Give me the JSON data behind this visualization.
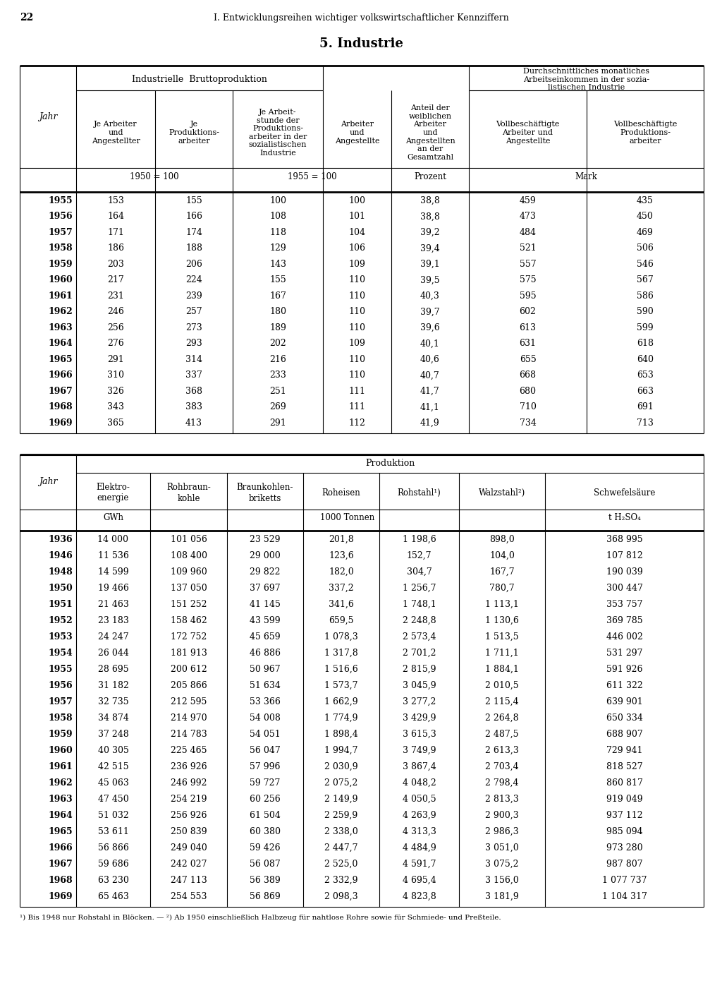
{
  "page_number": "22",
  "header_text": "I. Entwicklungsreihen wichtiger volkswirtschaftlicher Kennziffern",
  "section_title": "5. Industrie",
  "table1_data": [
    [
      "1955",
      "153",
      "155",
      "100",
      "100",
      "38,8",
      "459",
      "435"
    ],
    [
      "1956",
      "164",
      "166",
      "108",
      "101",
      "38,8",
      "473",
      "450"
    ],
    [
      "1957",
      "171",
      "174",
      "118",
      "104",
      "39,2",
      "484",
      "469"
    ],
    [
      "1958",
      "186",
      "188",
      "129",
      "106",
      "39,4",
      "521",
      "506"
    ],
    [
      "1959",
      "203",
      "206",
      "143",
      "109",
      "39,1",
      "557",
      "546"
    ],
    [
      "1960",
      "217",
      "224",
      "155",
      "110",
      "39,5",
      "575",
      "567"
    ],
    [
      "1961",
      "231",
      "239",
      "167",
      "110",
      "40,3",
      "595",
      "586"
    ],
    [
      "1962",
      "246",
      "257",
      "180",
      "110",
      "39,7",
      "602",
      "590"
    ],
    [
      "1963",
      "256",
      "273",
      "189",
      "110",
      "39,6",
      "613",
      "599"
    ],
    [
      "1964",
      "276",
      "293",
      "202",
      "109",
      "40,1",
      "631",
      "618"
    ],
    [
      "1965",
      "291",
      "314",
      "216",
      "110",
      "40,6",
      "655",
      "640"
    ],
    [
      "1966",
      "310",
      "337",
      "233",
      "110",
      "40,7",
      "668",
      "653"
    ],
    [
      "1967",
      "326",
      "368",
      "251",
      "111",
      "41,7",
      "680",
      "663"
    ],
    [
      "1968",
      "343",
      "383",
      "269",
      "111",
      "41,1",
      "710",
      "691"
    ],
    [
      "1969",
      "365",
      "413",
      "291",
      "112",
      "41,9",
      "734",
      "713"
    ]
  ],
  "table2_data": [
    [
      "1936",
      "14 000",
      "101 056",
      "23 529",
      "201,8",
      "1 198,6",
      "898,0",
      "368 995"
    ],
    [
      "1946",
      "11 536",
      "108 400",
      "29 000",
      "123,6",
      "152,7",
      "104,0",
      "107 812"
    ],
    [
      "1948",
      "14 599",
      "109 960",
      "29 822",
      "182,0",
      "304,7",
      "167,7",
      "190 039"
    ],
    [
      "1950",
      "19 466",
      "137 050",
      "37 697",
      "337,2",
      "1 256,7",
      "780,7",
      "300 447"
    ],
    [
      "1951",
      "21 463",
      "151 252",
      "41 145",
      "341,6",
      "1 748,1",
      "1 113,1",
      "353 757"
    ],
    [
      "1952",
      "23 183",
      "158 462",
      "43 599",
      "659,5",
      "2 248,8",
      "1 130,6",
      "369 785"
    ],
    [
      "1953",
      "24 247",
      "172 752",
      "45 659",
      "1 078,3",
      "2 573,4",
      "1 513,5",
      "446 002"
    ],
    [
      "1954",
      "26 044",
      "181 913",
      "46 886",
      "1 317,8",
      "2 701,2",
      "1 711,1",
      "531 297"
    ],
    [
      "1955",
      "28 695",
      "200 612",
      "50 967",
      "1 516,6",
      "2 815,9",
      "1 884,1",
      "591 926"
    ],
    [
      "1956",
      "31 182",
      "205 866",
      "51 634",
      "1 573,7",
      "3 045,9",
      "2 010,5",
      "611 322"
    ],
    [
      "1957",
      "32 735",
      "212 595",
      "53 366",
      "1 662,9",
      "3 277,2",
      "2 115,4",
      "639 901"
    ],
    [
      "1958",
      "34 874",
      "214 970",
      "54 008",
      "1 774,9",
      "3 429,9",
      "2 264,8",
      "650 334"
    ],
    [
      "1959",
      "37 248",
      "214 783",
      "54 051",
      "1 898,4",
      "3 615,3",
      "2 487,5",
      "688 907"
    ],
    [
      "1960",
      "40 305",
      "225 465",
      "56 047",
      "1 994,7",
      "3 749,9",
      "2 613,3",
      "729 941"
    ],
    [
      "1961",
      "42 515",
      "236 926",
      "57 996",
      "2 030,9",
      "3 867,4",
      "2 703,4",
      "818 527"
    ],
    [
      "1962",
      "45 063",
      "246 992",
      "59 727",
      "2 075,2",
      "4 048,2",
      "2 798,4",
      "860 817"
    ],
    [
      "1963",
      "47 450",
      "254 219",
      "60 256",
      "2 149,9",
      "4 050,5",
      "2 813,3",
      "919 049"
    ],
    [
      "1964",
      "51 032",
      "256 926",
      "61 504",
      "2 259,9",
      "4 263,9",
      "2 900,3",
      "937 112"
    ],
    [
      "1965",
      "53 611",
      "250 839",
      "60 380",
      "2 338,0",
      "4 313,3",
      "2 986,3",
      "985 094"
    ],
    [
      "1966",
      "56 866",
      "249 040",
      "59 426",
      "2 447,7",
      "4 484,9",
      "3 051,0",
      "973 280"
    ],
    [
      "1967",
      "59 686",
      "242 027",
      "56 087",
      "2 525,0",
      "4 591,7",
      "3 075,2",
      "987 807"
    ],
    [
      "1968",
      "63 230",
      "247 113",
      "56 389",
      "2 332,9",
      "4 695,4",
      "3 156,0",
      "1 077 737"
    ],
    [
      "1969",
      "65 463",
      "254 553",
      "56 869",
      "2 098,3",
      "4 823,8",
      "3 181,9",
      "1 104 317"
    ]
  ],
  "footnote": "¹) Bis 1948 nur Rohstahl in Blöcken. — ²) Ab 1950 einschließlich Halbzeug für nahtlose Rohre sowie für Schmiede- und Preßteile.",
  "bg_color": "#ffffff"
}
